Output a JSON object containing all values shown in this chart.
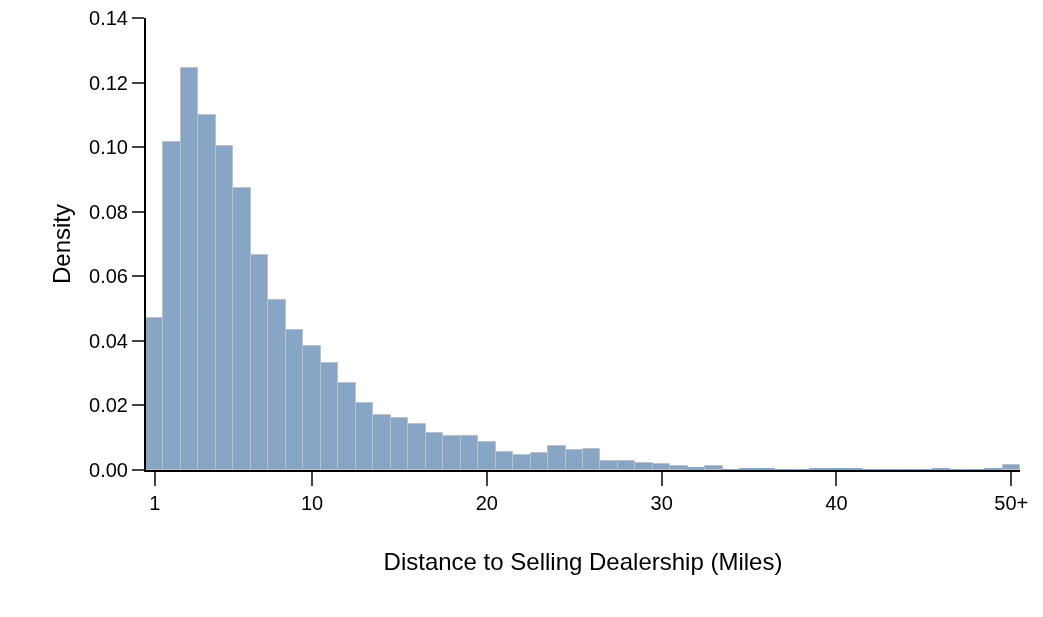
{
  "chart_data": {
    "type": "histogram",
    "xlabel": "Distance to Selling Dealership (Miles)",
    "ylabel": "Density",
    "bins": [
      0.5,
      1.5,
      2.5,
      3.5,
      4.5,
      5.5,
      6.5,
      7.5,
      8.5,
      9.5,
      10.5,
      11.5,
      12.5,
      13.5,
      14.5,
      15.5,
      16.5,
      17.5,
      18.5,
      19.5,
      20.5,
      21.5,
      22.5,
      23.5,
      24.5,
      25.5,
      26.5,
      27.5,
      28.5,
      29.5,
      30.5,
      31.5,
      32.5,
      33.5,
      34.5,
      35.5,
      36.5,
      37.5,
      38.5,
      39.5,
      40.5,
      41.5,
      42.5,
      43.5,
      44.5,
      45.5,
      46.5,
      47.5,
      48.5,
      49.5,
      50.5
    ],
    "values": [
      0.047,
      0.1016,
      0.1246,
      0.11,
      0.1003,
      0.0872,
      0.0666,
      0.0527,
      0.0434,
      0.0385,
      0.0332,
      0.0268,
      0.0207,
      0.017,
      0.0162,
      0.0143,
      0.0116,
      0.0106,
      0.0106,
      0.0086,
      0.0056,
      0.0046,
      0.0053,
      0.0074,
      0.0061,
      0.0065,
      0.0028,
      0.0028,
      0.0022,
      0.0019,
      0.0013,
      0.0007,
      0.0013,
      0.0001,
      0.0004,
      0.0002,
      0.0001,
      0.0001,
      0.0002,
      0.0004,
      0.0002,
      0.0001,
      0.0001,
      0.0001,
      0.0001,
      0.0002,
      0.0001,
      0.0001,
      0.0002,
      0.0015
    ],
    "color": "#87a5c4",
    "xlim": [
      0.5,
      50.5
    ],
    "xticks": [
      1,
      10,
      20,
      30,
      40,
      {
        "value": 50,
        "label": "50+"
      }
    ],
    "ylim": [
      0,
      0.14
    ],
    "yticks": [
      {
        "value": 0,
        "label": "0.00"
      },
      {
        "value": 0.02,
        "label": "0.02"
      },
      {
        "value": 0.04,
        "label": "0.04"
      },
      {
        "value": 0.06,
        "label": "0.06"
      },
      {
        "value": 0.08,
        "label": "0.08"
      },
      {
        "value": 0.1,
        "label": "0.10"
      },
      {
        "value": 0.12,
        "label": "0.12"
      },
      {
        "value": 0.14,
        "label": "0.14"
      }
    ]
  }
}
